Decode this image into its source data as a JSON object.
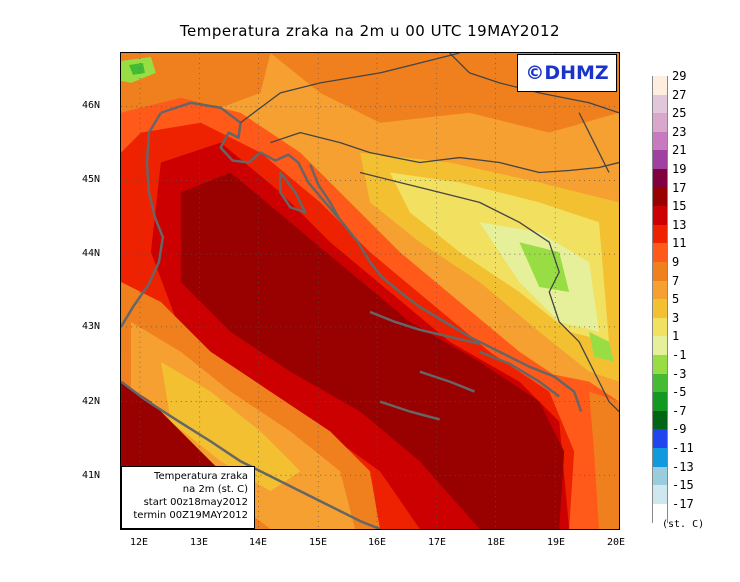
{
  "title": "Temperatura zraka na 2m u 00 UTC 19MAY2012",
  "copyright": "©DHMZ",
  "info_box": {
    "line1": "Temperatura zraka",
    "line2": "na 2m (st. C)",
    "line3": "start 00z18may2012",
    "line4": "termin 00Z19MAY2012"
  },
  "lat_labels": [
    "46N",
    "45N",
    "44N",
    "43N",
    "42N",
    "41N"
  ],
  "lon_labels": [
    "12E",
    "13E",
    "14E",
    "15E",
    "16E",
    "17E",
    "18E",
    "19E",
    "20E"
  ],
  "legend": {
    "labels": [
      "29",
      "27",
      "25",
      "23",
      "21",
      "19",
      "17",
      "15",
      "13",
      "11",
      "9",
      "7",
      "5",
      "3",
      "1",
      "-1",
      "-3",
      "-5",
      "-7",
      "-9",
      "-11",
      "-13",
      "-15",
      "-17"
    ],
    "colors": [
      "#fdeee0",
      "#e2c6d9",
      "#d9a6cc",
      "#c77ac0",
      "#a040a0",
      "#800040",
      "#990000",
      "#cc0000",
      "#ee2200",
      "#ff5a1a",
      "#f0801e",
      "#f5a030",
      "#f2c030",
      "#f2e060",
      "#e6f09a",
      "#99dd44",
      "#44bb33",
      "#119922",
      "#006615",
      "#2244ee",
      "#1199dd",
      "#99ccdd",
      "#cfe8ef",
      "#ffffff"
    ],
    "unit": "(st. C)"
  }
}
